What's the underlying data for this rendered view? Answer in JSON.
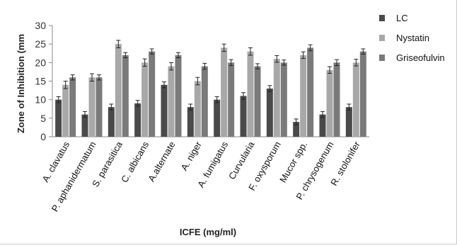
{
  "chart_data": {
    "type": "bar",
    "title": "",
    "xlabel": "ICFE (mg/ml)",
    "ylabel": "Zone of Inhibition (mm",
    "ylim": [
      0,
      30
    ],
    "yticks": [
      0,
      5,
      10,
      15,
      20,
      25,
      30
    ],
    "grid": false,
    "legend_position": "right",
    "error_bars": true,
    "categories": [
      "A. clavatus",
      "P. aphanidermatum",
      "S. parasitica",
      "C. albicans",
      "A.alternate",
      "A. niger",
      "A. fumigatus",
      "Curvularia",
      "F. oxysporum",
      "Mucor spp.",
      "P. chrysogenum",
      "R. stolonifer"
    ],
    "series": [
      {
        "name": "LC",
        "color": "#4a4a4a",
        "values": [
          10,
          6,
          8,
          9,
          14,
          8,
          10,
          11,
          13,
          4,
          6,
          8
        ],
        "errors": [
          0.8,
          0.8,
          0.8,
          0.8,
          0.8,
          0.8,
          0.8,
          0.9,
          0.8,
          0.8,
          0.8,
          0.8
        ]
      },
      {
        "name": "Nystatin",
        "color": "#a8a8a8",
        "values": [
          14,
          16,
          25,
          20,
          19,
          15,
          24,
          23,
          21,
          22,
          18,
          20
        ],
        "errors": [
          1.0,
          1.0,
          1.0,
          1.0,
          1.0,
          1.0,
          1.0,
          1.0,
          0.9,
          0.9,
          0.9,
          0.9
        ]
      },
      {
        "name": "Griseofulvin",
        "color": "#7a7a7a",
        "values": [
          16,
          16,
          22,
          23,
          22,
          19,
          20,
          19,
          20,
          24,
          20,
          23
        ],
        "errors": [
          0.7,
          0.7,
          0.7,
          0.7,
          0.7,
          0.8,
          0.8,
          0.7,
          0.7,
          0.8,
          0.8,
          0.7
        ]
      }
    ]
  }
}
